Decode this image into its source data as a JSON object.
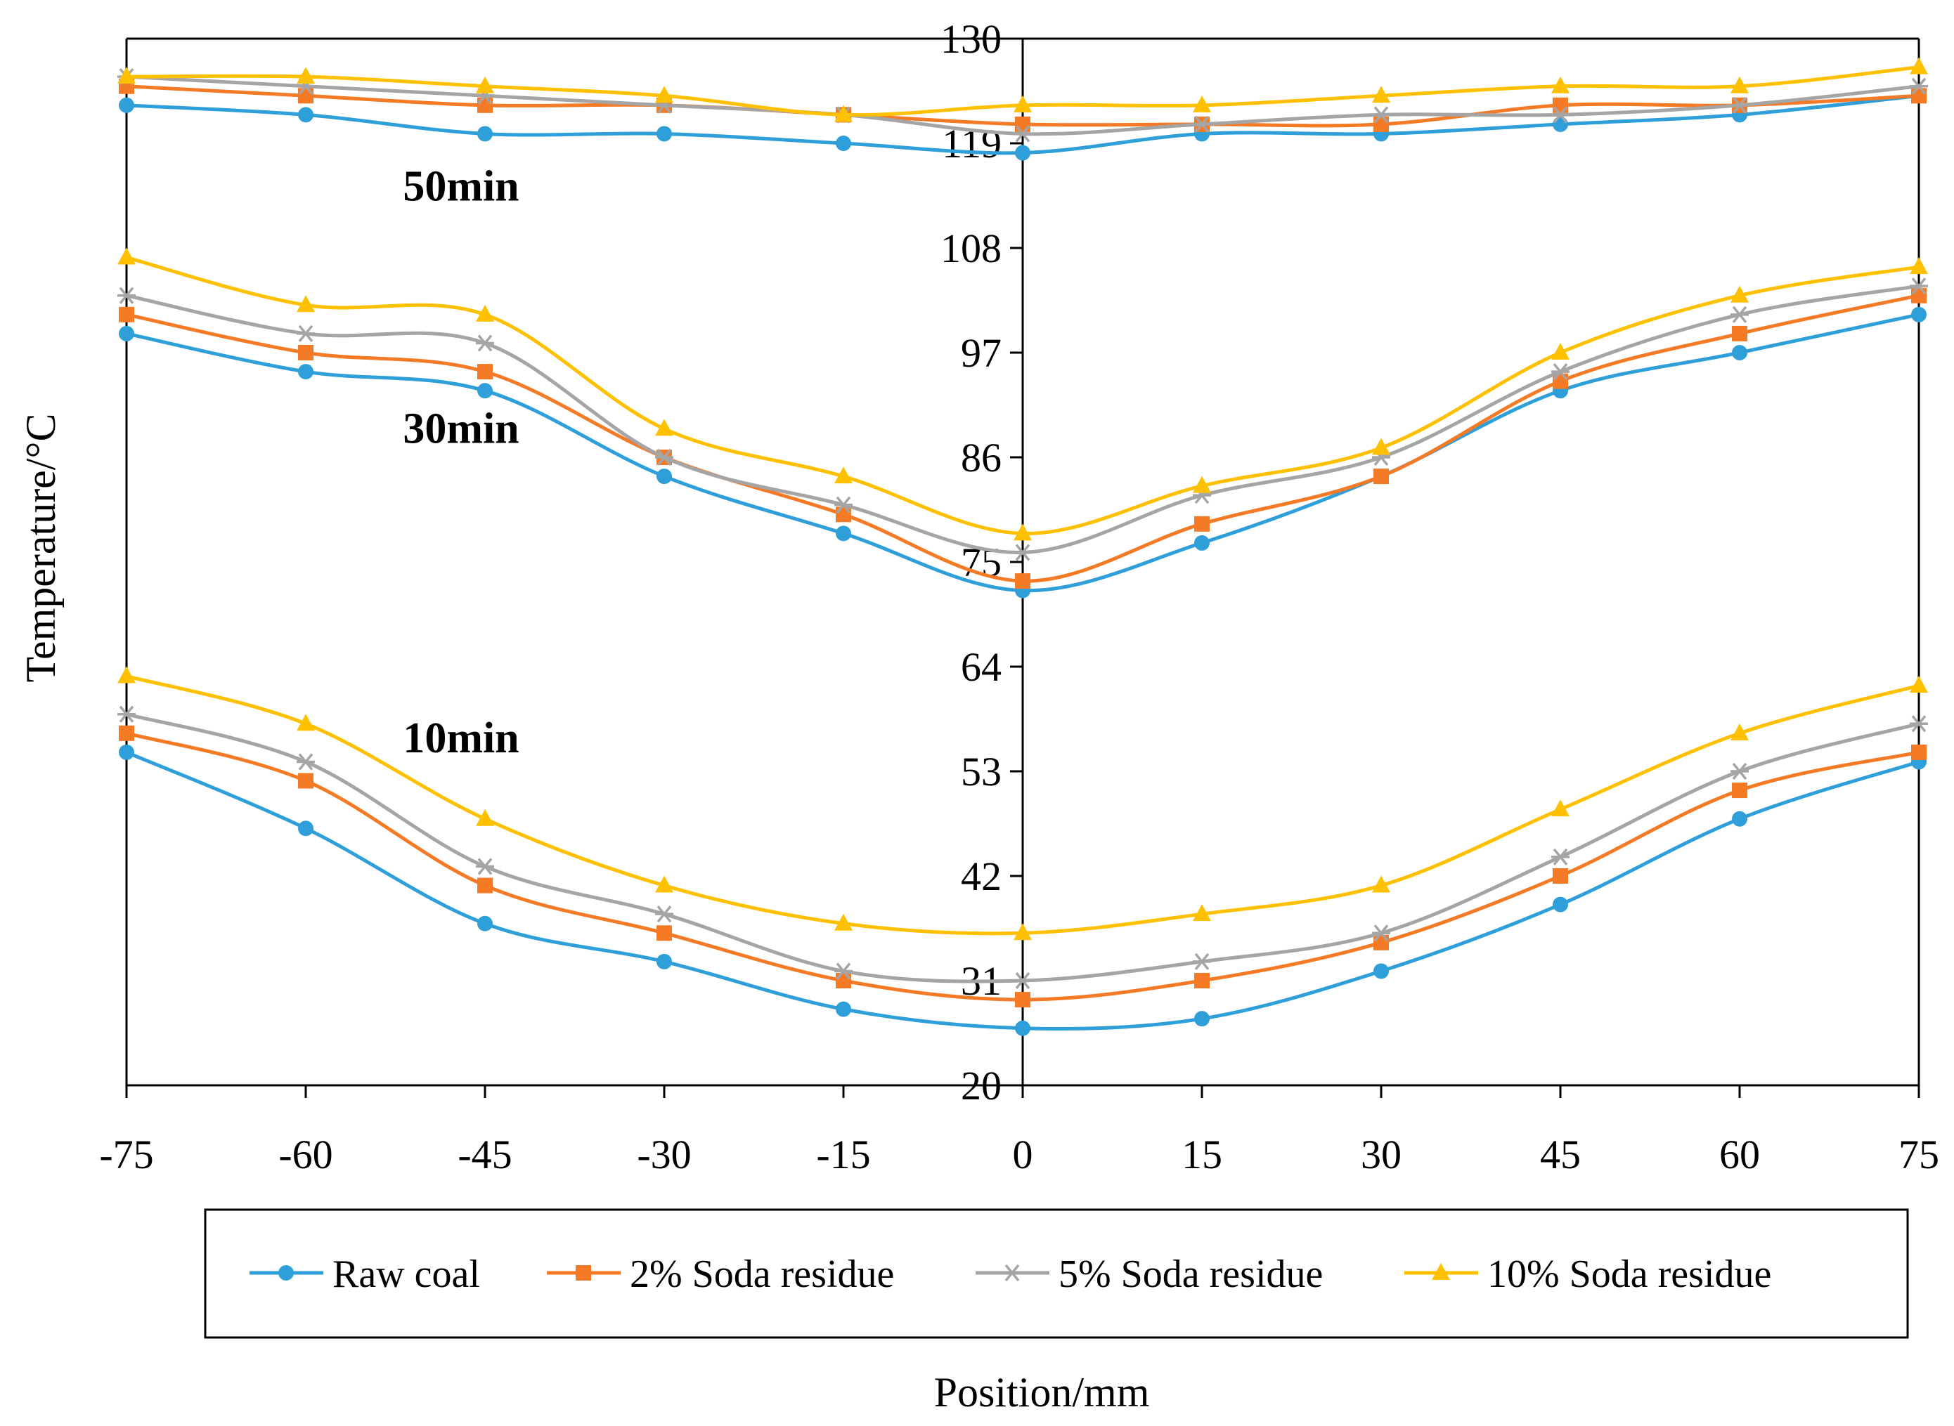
{
  "chart_data": {
    "type": "line",
    "title": "",
    "xlabel": "Position/mm",
    "ylabel": "Temperature/°C",
    "x": [
      -75,
      -60,
      -45,
      -30,
      -15,
      0,
      15,
      30,
      45,
      60,
      75
    ],
    "x_ticks": [
      "-75",
      "-60",
      "-45",
      "-30",
      "-15",
      "0",
      "15",
      "30",
      "45",
      "60",
      "75"
    ],
    "xlim": [
      -75,
      75
    ],
    "ylim": [
      20,
      130
    ],
    "y_ticks": [
      "20",
      "31",
      "42",
      "53",
      "64",
      "75",
      "86",
      "97",
      "108",
      "119",
      "130"
    ],
    "y_tick_values": [
      20,
      31,
      42,
      53,
      64,
      75,
      86,
      97,
      108,
      119,
      130
    ],
    "y_axis_at_x": 0,
    "grid": false,
    "legend_position": "bottom",
    "annotations": [
      {
        "text": "50min",
        "x": -47,
        "y": 113
      },
      {
        "text": "30min",
        "x": -47,
        "y": 87.5
      },
      {
        "text": "10min",
        "x": -47,
        "y": 55
      }
    ],
    "series": [
      {
        "name": "Raw coal",
        "color": "#2E9FD8",
        "marker": "circle",
        "groups": {
          "10min": [
            55,
            47,
            37,
            33,
            28,
            26,
            27,
            32,
            39,
            48,
            54
          ],
          "30min": [
            99,
            95,
            93,
            84,
            78,
            72,
            77,
            84,
            93,
            97,
            101
          ],
          "50min": [
            123,
            122,
            120,
            120,
            119,
            118,
            120,
            120,
            121,
            122,
            124
          ]
        }
      },
      {
        "name": "2% Soda residue",
        "color": "#F47A26",
        "marker": "square",
        "groups": {
          "10min": [
            57,
            52,
            41,
            36,
            31,
            29,
            31,
            35,
            42,
            51,
            55
          ],
          "30min": [
            101,
            97,
            95,
            86,
            80,
            73,
            79,
            84,
            94,
            99,
            103
          ],
          "50min": [
            125,
            124,
            123,
            123,
            122,
            121,
            121,
            121,
            123,
            123,
            124
          ]
        }
      },
      {
        "name": "5% Soda residue",
        "color": "#A5A5A5",
        "marker": "asterisk",
        "groups": {
          "10min": [
            59,
            54,
            43,
            38,
            32,
            31,
            33,
            36,
            44,
            53,
            58
          ],
          "30min": [
            103,
            99,
            98,
            86,
            81,
            76,
            82,
            86,
            95,
            101,
            104
          ],
          "50min": [
            126,
            125,
            124,
            123,
            122,
            120,
            121,
            122,
            122,
            123,
            125
          ]
        }
      },
      {
        "name": "10% Soda residue",
        "color": "#FFC000",
        "marker": "triangle",
        "groups": {
          "10min": [
            63,
            58,
            48,
            41,
            37,
            36,
            38,
            41,
            49,
            57,
            62
          ],
          "30min": [
            107,
            102,
            101,
            89,
            84,
            78,
            83,
            87,
            97,
            103,
            106
          ],
          "50min": [
            126,
            126,
            125,
            124,
            122,
            123,
            123,
            124,
            125,
            125,
            127
          ]
        }
      }
    ]
  }
}
